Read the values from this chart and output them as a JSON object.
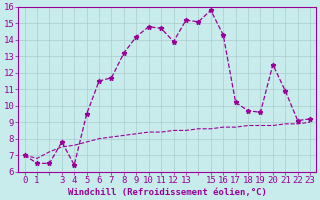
{
  "xlabel": "Windchill (Refroidissement éolien,°C)",
  "background_color": "#c8ecec",
  "line_color": "#990099",
  "x_main": [
    0,
    1,
    2,
    3,
    4,
    5,
    6,
    7,
    8,
    9,
    10,
    11,
    12,
    13,
    14,
    15,
    16,
    17,
    18,
    19,
    20,
    21,
    22,
    23
  ],
  "y_main": [
    7.0,
    6.5,
    6.5,
    7.8,
    6.4,
    9.5,
    11.5,
    11.7,
    13.2,
    14.2,
    14.8,
    14.7,
    13.9,
    15.2,
    15.1,
    15.8,
    14.3,
    10.2,
    9.7,
    9.6,
    12.5,
    10.9,
    9.1,
    9.2
  ],
  "x_smooth": [
    0,
    1,
    2,
    3,
    4,
    5,
    6,
    7,
    8,
    9,
    10,
    11,
    12,
    13,
    14,
    15,
    16,
    17,
    18,
    19,
    20,
    21,
    22,
    23
  ],
  "y_smooth": [
    7.0,
    6.8,
    7.2,
    7.5,
    7.6,
    7.8,
    8.0,
    8.1,
    8.2,
    8.3,
    8.4,
    8.4,
    8.5,
    8.5,
    8.6,
    8.6,
    8.7,
    8.7,
    8.8,
    8.8,
    8.8,
    8.9,
    8.9,
    9.0
  ],
  "xlim": [
    -0.5,
    23.5
  ],
  "ylim": [
    6,
    16
  ],
  "yticks": [
    6,
    7,
    8,
    9,
    10,
    11,
    12,
    13,
    14,
    15,
    16
  ],
  "xtick_labels": [
    "0",
    "1",
    "",
    "3",
    "4",
    "5",
    "6",
    "7",
    "8",
    "9",
    "10",
    "11",
    "12",
    "13",
    "",
    "15",
    "16",
    "17",
    "18",
    "19",
    "20",
    "21",
    "22",
    "23"
  ],
  "grid_color": "#aacccc",
  "fontsize_label": 6.5,
  "fontsize_tick": 6.5
}
